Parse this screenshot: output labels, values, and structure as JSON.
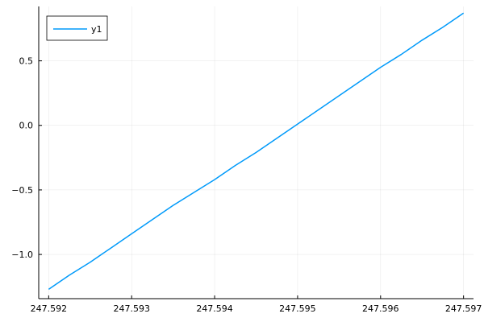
{
  "chart_data": {
    "type": "line",
    "grid": true,
    "legend_position": "top-left",
    "xlim": [
      247.59188,
      247.59712
    ],
    "ylim": [
      -1.3425,
      0.9215
    ],
    "x_ticks": [
      {
        "value": 247.592,
        "label": "247.592"
      },
      {
        "value": 247.593,
        "label": "247.593"
      },
      {
        "value": 247.594,
        "label": "247.594"
      },
      {
        "value": 247.595,
        "label": "247.595"
      },
      {
        "value": 247.596,
        "label": "247.596"
      },
      {
        "value": 247.597,
        "label": "247.597"
      }
    ],
    "y_ticks": [
      {
        "value": -1.0,
        "label": "−1.0"
      },
      {
        "value": -0.5,
        "label": "−0.5"
      },
      {
        "value": 0.0,
        "label": "0.0"
      },
      {
        "value": 0.5,
        "label": "0.5"
      }
    ],
    "series": [
      {
        "name": "y1",
        "color": "#009AFA",
        "x": [
          247.592,
          247.59225,
          247.5925,
          247.59275,
          247.593,
          247.59325,
          247.5935,
          247.59375,
          247.594,
          247.59425,
          247.5945,
          247.59475,
          247.595,
          247.59525,
          247.5955,
          247.59575,
          247.596,
          247.59625,
          247.5965,
          247.59675,
          247.597
        ],
        "values": [
          -1.27,
          -1.16,
          -1.06,
          -0.95,
          -0.84,
          -0.73,
          -0.62,
          -0.52,
          -0.42,
          -0.31,
          -0.21,
          -0.1,
          0.01,
          0.12,
          0.23,
          0.34,
          0.45,
          0.55,
          0.66,
          0.76,
          0.87
        ]
      }
    ]
  }
}
